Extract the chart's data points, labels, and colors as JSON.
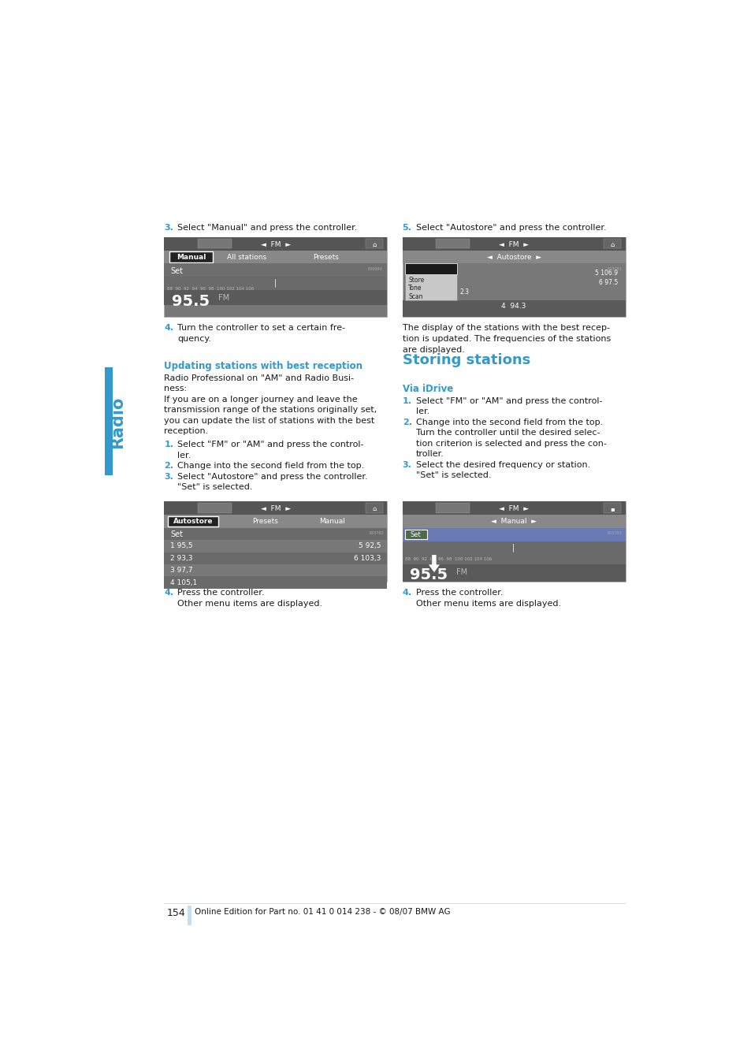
{
  "bg_color": "#ffffff",
  "text_color": "#1a1a1a",
  "blue_color": "#3399cc",
  "number_color": "#3399cc",
  "page_width": 9.54,
  "page_height": 13.5,
  "radio_label": "Radio",
  "page_number": "154",
  "footer_text": "Online Edition for Part no. 01 41 0 014 238 - © 08/07 BMW AG",
  "blue_bar_color": "#c5dff0"
}
